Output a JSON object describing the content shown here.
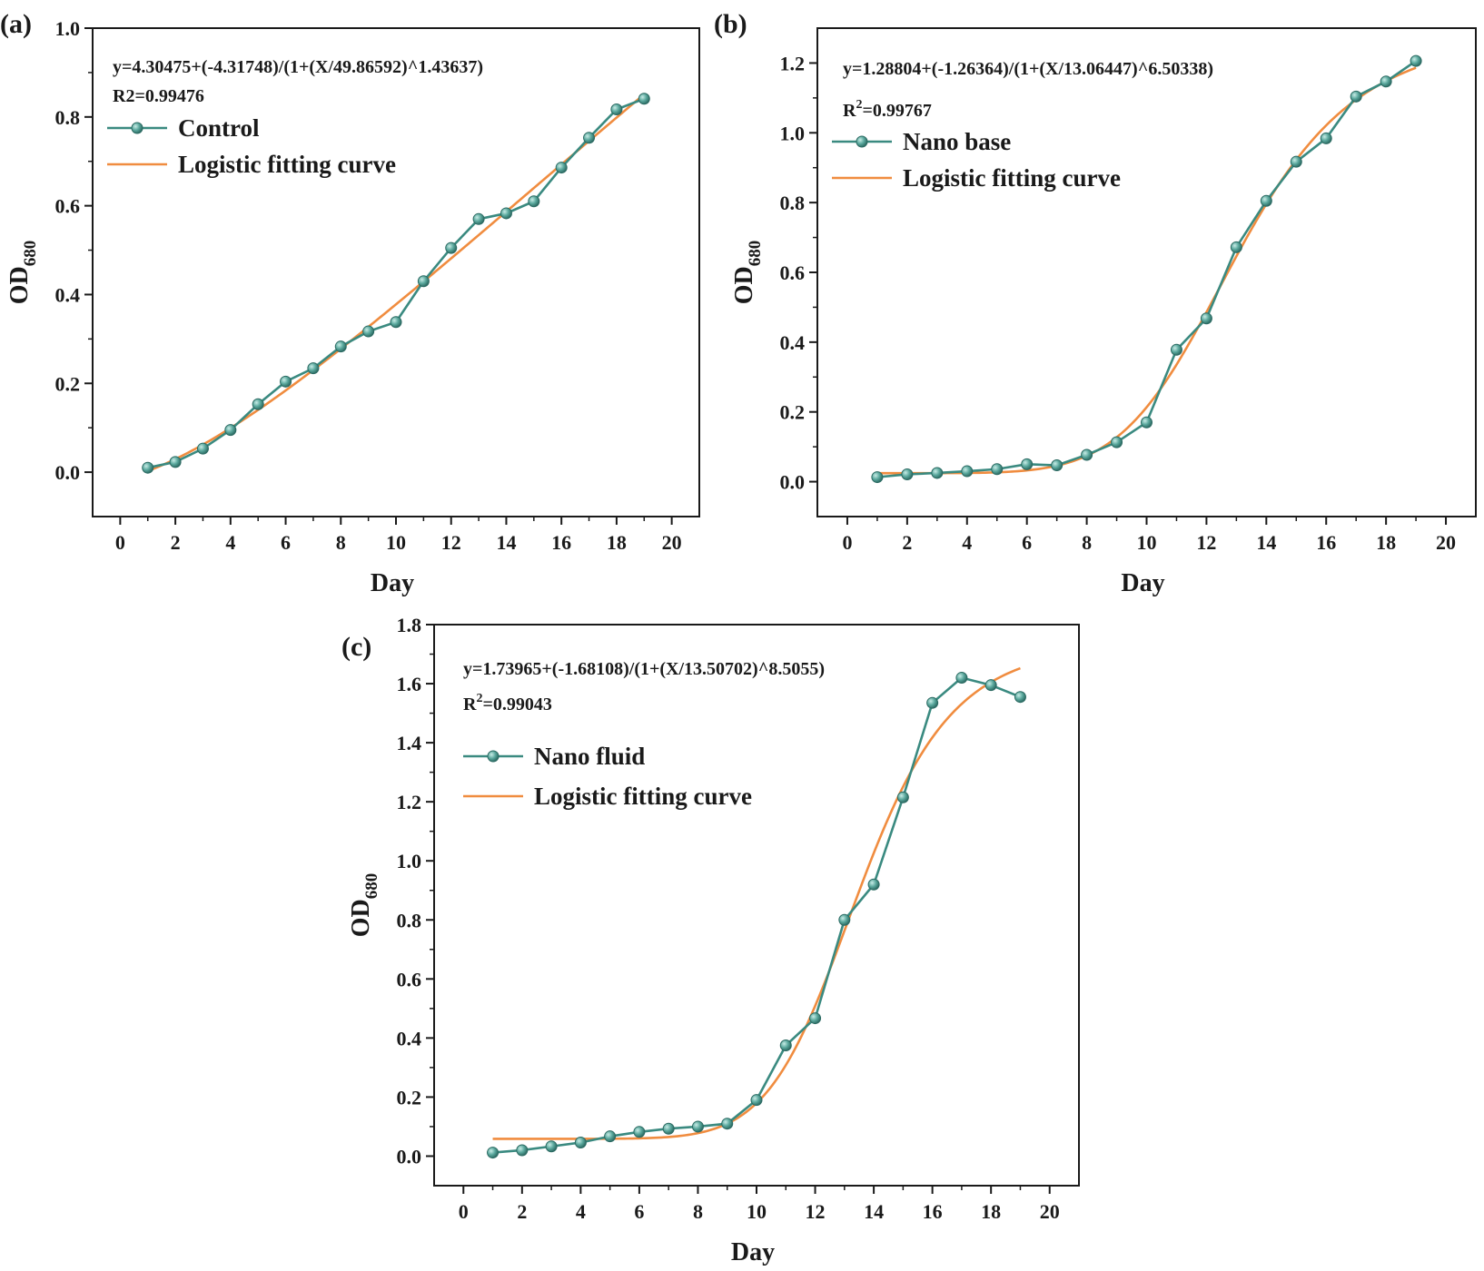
{
  "chart_data": [
    {
      "type": "line",
      "panel_label": "(a)",
      "xlabel": "Day",
      "ylabel_main": "OD",
      "ylabel_sub": "680",
      "xlim": [
        -1,
        21
      ],
      "ylim": [
        -0.1,
        1.0
      ],
      "xticks": [
        0,
        2,
        4,
        6,
        8,
        10,
        12,
        14,
        16,
        18,
        20
      ],
      "yticks": [
        0.0,
        0.2,
        0.4,
        0.6,
        0.8,
        1.0
      ],
      "ytick_labels": [
        "0.0",
        "0.2",
        "0.4",
        "0.6",
        "0.8",
        "1.0"
      ],
      "equation": "y=4.30475+(-4.31748)/(1+(X/49.86592)^1.43637)",
      "r2_prefix": "R2",
      "r2_sup": "",
      "r2_value": "=0.99476",
      "series": [
        {
          "name": "Control",
          "x": [
            1,
            2,
            3,
            4,
            5,
            6,
            7,
            8,
            9,
            10,
            11,
            12,
            13,
            14,
            15,
            16,
            17,
            18,
            19
          ],
          "values": [
            0.01,
            0.023,
            0.053,
            0.095,
            0.153,
            0.204,
            0.234,
            0.283,
            0.317,
            0.338,
            0.43,
            0.505,
            0.57,
            0.583,
            0.61,
            0.686,
            0.753,
            0.817,
            0.841
          ]
        },
        {
          "name": "Logistic fitting curve",
          "fit": {
            "A1": 4.30475,
            "A2": -4.31748,
            "x0": 49.86592,
            "p": 1.43637
          },
          "x_range": [
            1,
            19
          ]
        }
      ],
      "colors": {
        "series": "#3a8a80",
        "marker": "#5aa89d",
        "fit": "#f08c3f"
      }
    },
    {
      "type": "line",
      "panel_label": "(b)",
      "xlabel": "Day",
      "ylabel_main": "OD",
      "ylabel_sub": "680",
      "xlim": [
        -1,
        21
      ],
      "ylim": [
        -0.1,
        1.3
      ],
      "xticks": [
        0,
        2,
        4,
        6,
        8,
        10,
        12,
        14,
        16,
        18,
        20
      ],
      "yticks": [
        0.0,
        0.2,
        0.4,
        0.6,
        0.8,
        1.0,
        1.2
      ],
      "ytick_labels": [
        "0.0",
        "0.2",
        "0.4",
        "0.6",
        "0.8",
        "1.0",
        "1.2"
      ],
      "equation": "y=1.28804+(-1.26364)/(1+(X/13.06447)^6.50338)",
      "r2_prefix": "R",
      "r2_sup": "2",
      "r2_value": "=0.99767",
      "series": [
        {
          "name": "Nano base",
          "x": [
            1,
            2,
            3,
            4,
            5,
            6,
            7,
            8,
            9,
            10,
            11,
            12,
            13,
            14,
            15,
            16,
            17,
            18,
            19
          ],
          "values": [
            0.013,
            0.021,
            0.025,
            0.03,
            0.036,
            0.05,
            0.047,
            0.077,
            0.113,
            0.17,
            0.378,
            0.468,
            0.672,
            0.805,
            0.917,
            0.984,
            1.104,
            1.147,
            1.206
          ]
        },
        {
          "name": "Logistic fitting curve",
          "fit": {
            "A1": 1.28804,
            "A2": -1.26364,
            "x0": 13.06447,
            "p": 6.50338
          },
          "x_range": [
            1,
            19
          ]
        }
      ],
      "colors": {
        "series": "#3a8a80",
        "marker": "#5aa89d",
        "fit": "#f08c3f"
      }
    },
    {
      "type": "line",
      "panel_label": "(c)",
      "xlabel": "Day",
      "ylabel_main": "OD",
      "ylabel_sub": "680",
      "xlim": [
        -1,
        21
      ],
      "ylim": [
        -0.1,
        1.8
      ],
      "xticks": [
        0,
        2,
        4,
        6,
        8,
        10,
        12,
        14,
        16,
        18,
        20
      ],
      "yticks": [
        0.0,
        0.2,
        0.4,
        0.6,
        0.8,
        1.0,
        1.2,
        1.4,
        1.6,
        1.8
      ],
      "ytick_labels": [
        "0.0",
        "0.2",
        "0.4",
        "0.6",
        "0.8",
        "1.0",
        "1.2",
        "1.4",
        "1.6",
        "1.8"
      ],
      "equation": "y=1.73965+(-1.68108)/(1+(X/13.50702)^8.5055)",
      "r2_prefix": "R",
      "r2_sup": "2",
      "r2_value": "=0.99043",
      "series": [
        {
          "name": "Nano fluid",
          "x": [
            1,
            2,
            3,
            4,
            5,
            6,
            7,
            8,
            9,
            10,
            11,
            12,
            13,
            14,
            15,
            16,
            17,
            18,
            19
          ],
          "values": [
            0.012,
            0.02,
            0.033,
            0.046,
            0.067,
            0.082,
            0.093,
            0.1,
            0.11,
            0.19,
            0.375,
            0.467,
            0.8,
            0.92,
            1.215,
            1.535,
            1.62,
            1.595,
            1.555
          ]
        },
        {
          "name": "Logistic fitting curve",
          "fit": {
            "A1": 1.73965,
            "A2": -1.68108,
            "x0": 13.50702,
            "p": 8.5055
          },
          "x_range": [
            1,
            19
          ]
        }
      ],
      "colors": {
        "series": "#3a8a80",
        "marker": "#5aa89d",
        "fit": "#f08c3f"
      }
    }
  ]
}
